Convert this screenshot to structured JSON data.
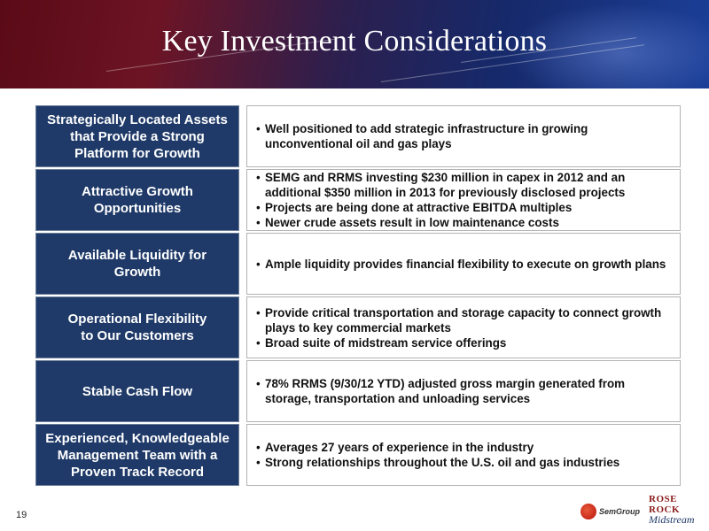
{
  "slide": {
    "title": "Key Investment Considerations",
    "page_number": "19"
  },
  "rows": [
    {
      "label": "Strategically Located Assets\nthat Provide a Strong\nPlatform for Growth",
      "bullets": [
        "Well positioned to add strategic infrastructure in growing unconventional oil and gas plays"
      ]
    },
    {
      "label": "Attractive Growth\nOpportunities",
      "bullets": [
        "SEMG and RRMS investing $230 million in capex in 2012 and an additional $350 million in 2013 for previously disclosed projects",
        "Projects are being done at attractive EBITDA multiples",
        "Newer crude assets result in low maintenance costs"
      ]
    },
    {
      "label": "Available Liquidity for\nGrowth",
      "bullets": [
        "Ample liquidity provides financial flexibility to execute on growth plans"
      ]
    },
    {
      "label": "Operational Flexibility\nto Our Customers",
      "bullets": [
        "Provide critical transportation and storage capacity to connect growth plays to key commercial markets",
        "Broad suite of midstream service offerings"
      ]
    },
    {
      "label": "Stable Cash Flow",
      "bullets": [
        "78% RRMS (9/30/12 YTD) adjusted gross margin generated from storage, transportation and unloading services"
      ]
    },
    {
      "label": "Experienced, Knowledgeable\nManagement Team with a\nProven Track Record",
      "bullets": [
        "Averages 27 years of experience in the industry",
        "Strong relationships throughout the U.S. oil and gas industries"
      ]
    }
  ],
  "logos": {
    "semgroup": "SemGroup",
    "rose_rock_line1": "ROSE ROCK",
    "rose_rock_line2": "Midstream"
  },
  "colors": {
    "label_bg": "#1f3a68",
    "header_red": "#6d1424",
    "header_blue": "#1b3f98"
  }
}
